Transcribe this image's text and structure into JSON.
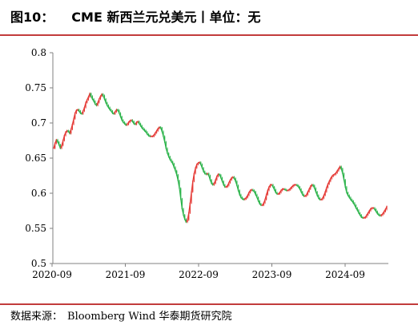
{
  "header": {
    "figure_label": "图10：",
    "title_text": "CME 新西兰元兑美元丨单位：无"
  },
  "chart_data": {
    "type": "line",
    "title": "CME 新西兰元兑美元丨单位：无",
    "xlabel": "",
    "ylabel": "",
    "x_tick_labels": [
      "2020-09",
      "2021-09",
      "2022-09",
      "2023-09",
      "2024-09"
    ],
    "y_tick_labels": [
      "0.5",
      "0.55",
      "0.6",
      "0.65",
      "0.7",
      "0.75",
      "0.8"
    ],
    "ylim": [
      0.5,
      0.8
    ],
    "grid": false,
    "legend": "none",
    "colors": {
      "up": "#e53935",
      "down": "#2bb34a",
      "axis": "#808080",
      "text": "#000000"
    },
    "series": [
      {
        "values": [
          0.664,
          0.671,
          0.676,
          0.673,
          0.669,
          0.664,
          0.668,
          0.675,
          0.682,
          0.687,
          0.689,
          0.688,
          0.685,
          0.691,
          0.698,
          0.706,
          0.714,
          0.718,
          0.719,
          0.717,
          0.714,
          0.713,
          0.717,
          0.722,
          0.729,
          0.733,
          0.737,
          0.742,
          0.738,
          0.734,
          0.731,
          0.727,
          0.725,
          0.729,
          0.734,
          0.738,
          0.741,
          0.739,
          0.734,
          0.729,
          0.725,
          0.722,
          0.719,
          0.717,
          0.714,
          0.713,
          0.716,
          0.719,
          0.718,
          0.714,
          0.709,
          0.704,
          0.701,
          0.699,
          0.697,
          0.698,
          0.701,
          0.703,
          0.704,
          0.702,
          0.699,
          0.698,
          0.701,
          0.702,
          0.699,
          0.696,
          0.693,
          0.691,
          0.689,
          0.687,
          0.684,
          0.682,
          0.681,
          0.681,
          0.681,
          0.683,
          0.686,
          0.689,
          0.692,
          0.694,
          0.693,
          0.688,
          0.681,
          0.673,
          0.664,
          0.657,
          0.652,
          0.648,
          0.645,
          0.642,
          0.637,
          0.632,
          0.626,
          0.618,
          0.607,
          0.592,
          0.578,
          0.569,
          0.563,
          0.559,
          0.562,
          0.572,
          0.586,
          0.602,
          0.617,
          0.628,
          0.636,
          0.641,
          0.643,
          0.644,
          0.641,
          0.636,
          0.631,
          0.628,
          0.627,
          0.628,
          0.625,
          0.619,
          0.614,
          0.612,
          0.614,
          0.619,
          0.624,
          0.627,
          0.626,
          0.622,
          0.617,
          0.612,
          0.609,
          0.609,
          0.611,
          0.615,
          0.619,
          0.622,
          0.623,
          0.621,
          0.617,
          0.611,
          0.604,
          0.598,
          0.594,
          0.592,
          0.591,
          0.592,
          0.594,
          0.597,
          0.601,
          0.604,
          0.605,
          0.604,
          0.602,
          0.598,
          0.594,
          0.589,
          0.585,
          0.583,
          0.583,
          0.586,
          0.591,
          0.598,
          0.604,
          0.609,
          0.612,
          0.612,
          0.609,
          0.605,
          0.601,
          0.599,
          0.599,
          0.601,
          0.604,
          0.606,
          0.606,
          0.605,
          0.604,
          0.604,
          0.605,
          0.607,
          0.609,
          0.611,
          0.612,
          0.612,
          0.611,
          0.609,
          0.606,
          0.602,
          0.598,
          0.596,
          0.596,
          0.598,
          0.602,
          0.606,
          0.61,
          0.612,
          0.611,
          0.607,
          0.602,
          0.597,
          0.593,
          0.591,
          0.591,
          0.593,
          0.597,
          0.602,
          0.608,
          0.613,
          0.617,
          0.621,
          0.624,
          0.626,
          0.627,
          0.629,
          0.632,
          0.635,
          0.638,
          0.635,
          0.628,
          0.619,
          0.609,
          0.601,
          0.597,
          0.594,
          0.591,
          0.589,
          0.586,
          0.583,
          0.579,
          0.576,
          0.572,
          0.569,
          0.566,
          0.565,
          0.565,
          0.566,
          0.569,
          0.572,
          0.575,
          0.578,
          0.579,
          0.579,
          0.577,
          0.574,
          0.571,
          0.569,
          0.568,
          0.569,
          0.571,
          0.574,
          0.577,
          0.581
        ]
      }
    ]
  },
  "source": {
    "label": "数据来源：",
    "text": "Bloomberg Wind 华泰期货研究院"
  }
}
